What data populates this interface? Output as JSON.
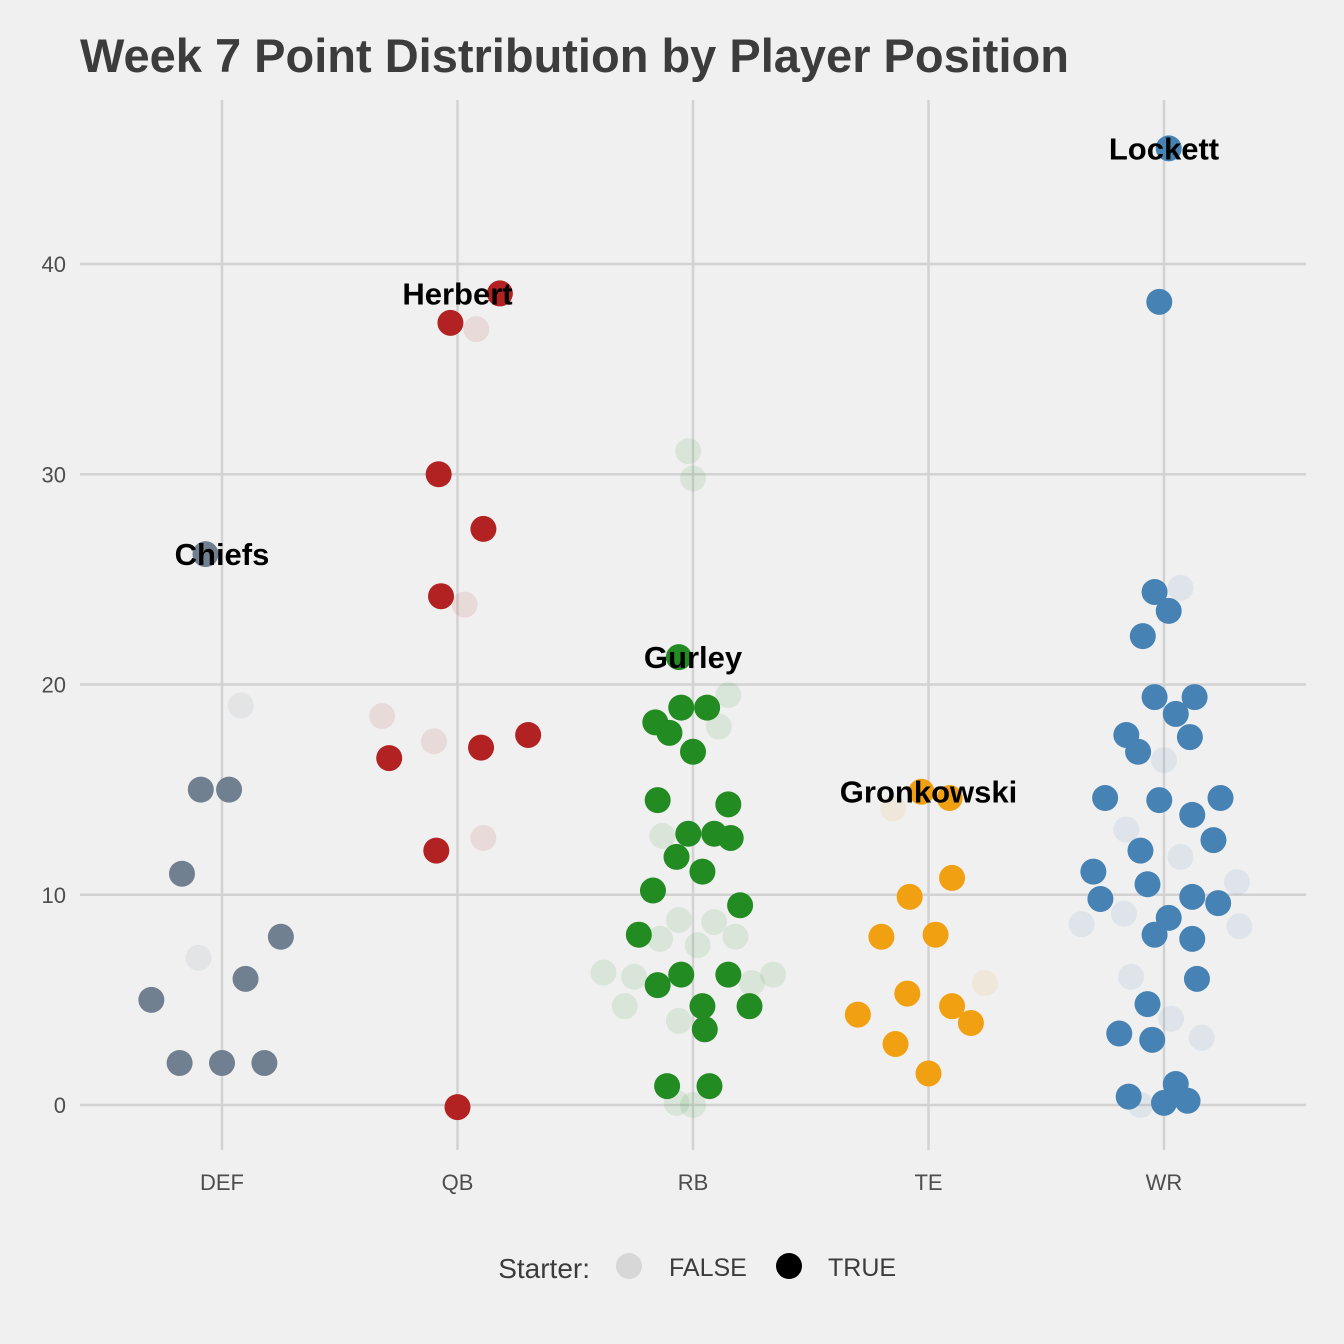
{
  "chart_data": {
    "type": "scatter",
    "title": "Week 7 Point Distribution by Player Position",
    "xlabel": "",
    "ylabel": "",
    "categories": [
      "DEF",
      "QB",
      "RB",
      "TE",
      "WR"
    ],
    "y_ticks": [
      0,
      10,
      20,
      30,
      40
    ],
    "ylim": [
      -2,
      48
    ],
    "grid": true,
    "colors": {
      "DEF": "#708090",
      "QB": "#b22222",
      "RB": "#228b22",
      "TE": "#f0a010",
      "WR": "#4682b4"
    },
    "legend": {
      "title": "Starter:",
      "position": "bottom",
      "entries": [
        {
          "label": "FALSE",
          "starter": false
        },
        {
          "label": "TRUE",
          "starter": true
        }
      ]
    },
    "series": [
      {
        "position": "DEF",
        "points": [
          {
            "x": -0.07,
            "y": 26.2,
            "starter": true
          },
          {
            "x": 0.08,
            "y": 19.0,
            "starter": false
          },
          {
            "x": -0.09,
            "y": 15.0,
            "starter": true
          },
          {
            "x": 0.03,
            "y": 15.0,
            "starter": true
          },
          {
            "x": -0.17,
            "y": 11.0,
            "starter": true
          },
          {
            "x": 0.25,
            "y": 8.0,
            "starter": true
          },
          {
            "x": -0.1,
            "y": 7.0,
            "starter": false
          },
          {
            "x": 0.1,
            "y": 6.0,
            "starter": true
          },
          {
            "x": -0.3,
            "y": 5.0,
            "starter": true
          },
          {
            "x": -0.18,
            "y": 2.0,
            "starter": true
          },
          {
            "x": 0.0,
            "y": 2.0,
            "starter": true
          },
          {
            "x": 0.18,
            "y": 2.0,
            "starter": true
          }
        ]
      },
      {
        "position": "QB",
        "points": [
          {
            "x": 0.18,
            "y": 38.6,
            "starter": true
          },
          {
            "x": -0.03,
            "y": 37.2,
            "starter": true
          },
          {
            "x": 0.08,
            "y": 36.9,
            "starter": false
          },
          {
            "x": -0.08,
            "y": 30.0,
            "starter": true
          },
          {
            "x": 0.11,
            "y": 27.4,
            "starter": true
          },
          {
            "x": -0.07,
            "y": 24.2,
            "starter": true
          },
          {
            "x": 0.03,
            "y": 23.8,
            "starter": false
          },
          {
            "x": -0.32,
            "y": 18.5,
            "starter": false
          },
          {
            "x": 0.3,
            "y": 17.6,
            "starter": true
          },
          {
            "x": -0.1,
            "y": 17.3,
            "starter": false
          },
          {
            "x": 0.1,
            "y": 17.0,
            "starter": true
          },
          {
            "x": -0.29,
            "y": 16.5,
            "starter": true
          },
          {
            "x": 0.11,
            "y": 12.7,
            "starter": false
          },
          {
            "x": -0.09,
            "y": 12.1,
            "starter": true
          },
          {
            "x": 0.0,
            "y": -0.1,
            "starter": true
          }
        ]
      },
      {
        "position": "RB",
        "points": [
          {
            "x": -0.02,
            "y": 31.1,
            "starter": false
          },
          {
            "x": 0.0,
            "y": 29.8,
            "starter": false
          },
          {
            "x": -0.06,
            "y": 21.3,
            "starter": true
          },
          {
            "x": 0.15,
            "y": 19.5,
            "starter": false
          },
          {
            "x": -0.05,
            "y": 18.9,
            "starter": true
          },
          {
            "x": 0.06,
            "y": 18.9,
            "starter": true
          },
          {
            "x": -0.16,
            "y": 18.2,
            "starter": true
          },
          {
            "x": 0.11,
            "y": 18.0,
            "starter": false
          },
          {
            "x": -0.1,
            "y": 17.7,
            "starter": true
          },
          {
            "x": 0.0,
            "y": 16.8,
            "starter": true
          },
          {
            "x": -0.15,
            "y": 14.5,
            "starter": true
          },
          {
            "x": 0.15,
            "y": 14.3,
            "starter": true
          },
          {
            "x": -0.13,
            "y": 12.8,
            "starter": false
          },
          {
            "x": -0.02,
            "y": 12.9,
            "starter": true
          },
          {
            "x": 0.09,
            "y": 12.9,
            "starter": true
          },
          {
            "x": 0.16,
            "y": 12.7,
            "starter": true
          },
          {
            "x": -0.07,
            "y": 11.8,
            "starter": true
          },
          {
            "x": 0.04,
            "y": 11.1,
            "starter": true
          },
          {
            "x": -0.17,
            "y": 10.2,
            "starter": true
          },
          {
            "x": 0.2,
            "y": 9.5,
            "starter": true
          },
          {
            "x": -0.06,
            "y": 8.8,
            "starter": false
          },
          {
            "x": 0.09,
            "y": 8.7,
            "starter": false
          },
          {
            "x": -0.14,
            "y": 7.9,
            "starter": false
          },
          {
            "x": -0.23,
            "y": 8.1,
            "starter": true
          },
          {
            "x": 0.02,
            "y": 7.6,
            "starter": false
          },
          {
            "x": 0.18,
            "y": 8.0,
            "starter": false
          },
          {
            "x": -0.38,
            "y": 6.3,
            "starter": false
          },
          {
            "x": -0.25,
            "y": 6.1,
            "starter": false
          },
          {
            "x": -0.05,
            "y": 6.2,
            "starter": true
          },
          {
            "x": 0.15,
            "y": 6.2,
            "starter": true
          },
          {
            "x": 0.34,
            "y": 6.2,
            "starter": false
          },
          {
            "x": 0.25,
            "y": 5.8,
            "starter": false
          },
          {
            "x": -0.15,
            "y": 5.7,
            "starter": true
          },
          {
            "x": -0.29,
            "y": 4.7,
            "starter": false
          },
          {
            "x": 0.04,
            "y": 4.7,
            "starter": true
          },
          {
            "x": 0.24,
            "y": 4.7,
            "starter": true
          },
          {
            "x": -0.06,
            "y": 4.0,
            "starter": false
          },
          {
            "x": 0.05,
            "y": 3.6,
            "starter": true
          },
          {
            "x": -0.11,
            "y": 0.9,
            "starter": true
          },
          {
            "x": 0.07,
            "y": 0.9,
            "starter": true
          },
          {
            "x": -0.07,
            "y": 0.1,
            "starter": false
          },
          {
            "x": 0.0,
            "y": 0.0,
            "starter": false
          }
        ]
      },
      {
        "position": "TE",
        "points": [
          {
            "x": -0.03,
            "y": 14.9,
            "starter": true
          },
          {
            "x": 0.09,
            "y": 14.6,
            "starter": true
          },
          {
            "x": -0.15,
            "y": 14.1,
            "starter": false
          },
          {
            "x": 0.1,
            "y": 10.8,
            "starter": true
          },
          {
            "x": -0.08,
            "y": 9.9,
            "starter": true
          },
          {
            "x": -0.2,
            "y": 8.0,
            "starter": true
          },
          {
            "x": 0.03,
            "y": 8.1,
            "starter": true
          },
          {
            "x": 0.24,
            "y": 5.8,
            "starter": false
          },
          {
            "x": -0.09,
            "y": 5.3,
            "starter": true
          },
          {
            "x": 0.1,
            "y": 4.7,
            "starter": true
          },
          {
            "x": -0.3,
            "y": 4.3,
            "starter": true
          },
          {
            "x": 0.18,
            "y": 3.9,
            "starter": true
          },
          {
            "x": -0.14,
            "y": 2.9,
            "starter": true
          },
          {
            "x": 0.0,
            "y": 1.5,
            "starter": true
          }
        ]
      },
      {
        "position": "WR",
        "points": [
          {
            "x": 0.02,
            "y": 45.5,
            "starter": true
          },
          {
            "x": -0.02,
            "y": 38.2,
            "starter": true
          },
          {
            "x": 0.07,
            "y": 24.6,
            "starter": false
          },
          {
            "x": -0.04,
            "y": 24.4,
            "starter": true
          },
          {
            "x": 0.02,
            "y": 23.5,
            "starter": true
          },
          {
            "x": -0.09,
            "y": 22.3,
            "starter": true
          },
          {
            "x": -0.04,
            "y": 19.4,
            "starter": true
          },
          {
            "x": 0.13,
            "y": 19.4,
            "starter": true
          },
          {
            "x": 0.05,
            "y": 18.6,
            "starter": true
          },
          {
            "x": -0.16,
            "y": 17.6,
            "starter": true
          },
          {
            "x": 0.11,
            "y": 17.5,
            "starter": true
          },
          {
            "x": -0.11,
            "y": 16.8,
            "starter": true
          },
          {
            "x": 0.0,
            "y": 16.4,
            "starter": false
          },
          {
            "x": -0.25,
            "y": 14.6,
            "starter": true
          },
          {
            "x": -0.02,
            "y": 14.5,
            "starter": true
          },
          {
            "x": 0.24,
            "y": 14.6,
            "starter": true
          },
          {
            "x": 0.12,
            "y": 13.8,
            "starter": true
          },
          {
            "x": -0.16,
            "y": 13.1,
            "starter": false
          },
          {
            "x": 0.21,
            "y": 12.6,
            "starter": true
          },
          {
            "x": -0.1,
            "y": 12.1,
            "starter": true
          },
          {
            "x": 0.07,
            "y": 11.8,
            "starter": false
          },
          {
            "x": -0.3,
            "y": 11.1,
            "starter": true
          },
          {
            "x": 0.31,
            "y": 10.6,
            "starter": false
          },
          {
            "x": -0.07,
            "y": 10.5,
            "starter": true
          },
          {
            "x": -0.27,
            "y": 9.8,
            "starter": true
          },
          {
            "x": 0.12,
            "y": 9.9,
            "starter": true
          },
          {
            "x": 0.23,
            "y": 9.6,
            "starter": true
          },
          {
            "x": -0.17,
            "y": 9.1,
            "starter": false
          },
          {
            "x": 0.02,
            "y": 8.9,
            "starter": true
          },
          {
            "x": -0.35,
            "y": 8.6,
            "starter": false
          },
          {
            "x": 0.32,
            "y": 8.5,
            "starter": false
          },
          {
            "x": -0.04,
            "y": 8.1,
            "starter": true
          },
          {
            "x": 0.12,
            "y": 7.9,
            "starter": true
          },
          {
            "x": -0.14,
            "y": 6.1,
            "starter": false
          },
          {
            "x": 0.14,
            "y": 6.0,
            "starter": true
          },
          {
            "x": -0.07,
            "y": 4.8,
            "starter": true
          },
          {
            "x": 0.03,
            "y": 4.1,
            "starter": false
          },
          {
            "x": -0.19,
            "y": 3.4,
            "starter": true
          },
          {
            "x": 0.16,
            "y": 3.2,
            "starter": false
          },
          {
            "x": -0.05,
            "y": 3.1,
            "starter": true
          },
          {
            "x": 0.05,
            "y": 1.0,
            "starter": true
          },
          {
            "x": -0.15,
            "y": 0.4,
            "starter": true
          },
          {
            "x": -0.1,
            "y": 0.0,
            "starter": false
          },
          {
            "x": 0.0,
            "y": 0.1,
            "starter": true
          },
          {
            "x": 0.1,
            "y": 0.2,
            "starter": true
          }
        ]
      }
    ],
    "annotations": [
      {
        "text": "Chiefs",
        "position": "DEF",
        "y": 26.2
      },
      {
        "text": "Herbert",
        "position": "QB",
        "y": 38.6
      },
      {
        "text": "Gurley",
        "position": "RB",
        "y": 21.3
      },
      {
        "text": "Gronkowski",
        "position": "TE",
        "y": 14.9
      },
      {
        "text": "Lockett",
        "position": "WR",
        "y": 45.5
      }
    ]
  }
}
